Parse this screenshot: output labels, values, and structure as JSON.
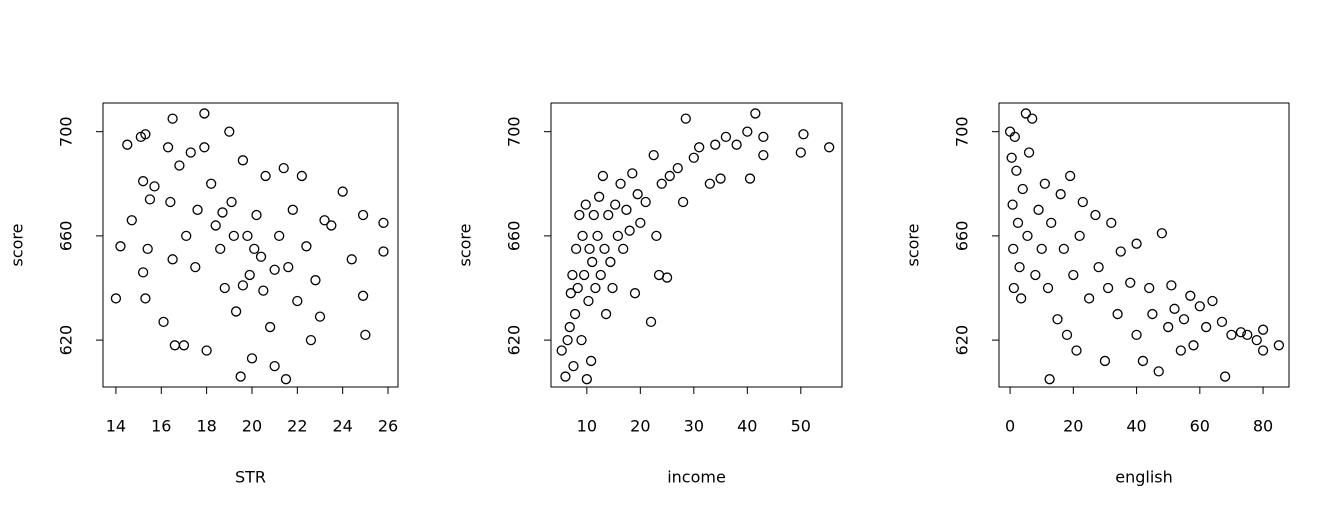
{
  "chart_data": [
    {
      "type": "scatter",
      "xlabel": "STR",
      "ylabel": "score",
      "xlim": [
        13.43,
        26.44
      ],
      "ylim": [
        602,
        711
      ],
      "xticks": [
        14,
        16,
        18,
        20,
        22,
        24,
        26
      ],
      "yticks": [
        620,
        660,
        700
      ],
      "series": [
        {
          "color": "#000000",
          "x": [
            14.0,
            14.2,
            14.5,
            14.7,
            15.1,
            15.3,
            15.2,
            15.4,
            15.5,
            15.2,
            15.3,
            15.7,
            16.1,
            16.3,
            16.4,
            16.5,
            16.6,
            16.5,
            16.8,
            17.0,
            17.1,
            17.3,
            17.5,
            17.6,
            17.9,
            17.9,
            18.0,
            18.2,
            18.4,
            18.6,
            18.8,
            19.0,
            19.1,
            19.3,
            19.5,
            19.6,
            19.8,
            19.9,
            20.0,
            20.2,
            20.4,
            20.5,
            20.6,
            20.8,
            21.0,
            21.2,
            21.4,
            21.5,
            21.6,
            21.8,
            22.0,
            22.2,
            22.4,
            22.6,
            22.8,
            23.0,
            23.2,
            23.5,
            24.0,
            24.4,
            24.9,
            24.9,
            25.0,
            25.8,
            25.8,
            19.2,
            18.7,
            20.1,
            19.6,
            21.0
          ],
          "values": [
            636,
            656,
            695,
            666,
            698,
            699,
            681,
            655,
            674,
            646,
            636,
            679,
            627,
            694,
            673,
            651,
            618,
            705,
            687,
            618,
            660,
            692,
            648,
            670,
            707,
            694,
            616,
            680,
            664,
            655,
            640,
            700,
            673,
            631,
            606,
            689,
            660,
            645,
            613,
            668,
            652,
            639,
            683,
            625,
            610,
            660,
            686,
            605,
            648,
            670,
            635,
            683,
            656,
            620,
            643,
            629,
            666,
            664,
            677,
            651,
            668,
            637,
            622,
            665,
            654,
            660,
            669,
            655,
            641,
            647
          ]
        }
      ]
    },
    {
      "type": "scatter",
      "xlabel": "income",
      "ylabel": "score",
      "xlim": [
        3.3,
        57.7
      ],
      "ylim": [
        602,
        711
      ],
      "xticks": [
        10,
        20,
        30,
        40,
        50
      ],
      "yticks": [
        620,
        660,
        700
      ],
      "series": [
        {
          "color": "#000000",
          "x": [
            5.3,
            6.0,
            6.4,
            6.8,
            7.0,
            7.3,
            7.5,
            7.8,
            8.0,
            8.3,
            8.6,
            9.0,
            9.2,
            9.5,
            9.8,
            10.0,
            10.3,
            10.5,
            10.8,
            11.0,
            11.3,
            11.6,
            12.0,
            12.3,
            12.6,
            13.0,
            13.3,
            13.6,
            14.0,
            14.4,
            14.8,
            15.3,
            15.8,
            16.3,
            16.8,
            17.4,
            18.0,
            18.5,
            19.0,
            19.5,
            20.0,
            21.0,
            22.0,
            22.5,
            23.0,
            23.5,
            24.0,
            25.0,
            25.5,
            27.0,
            28.0,
            28.5,
            30.0,
            31.0,
            33.0,
            34.0,
            35.0,
            36.0,
            38.0,
            40.0,
            40.5,
            41.5,
            43.0,
            43.0,
            50.0,
            50.5,
            55.3
          ],
          "values": [
            616,
            606,
            620,
            625,
            638,
            645,
            610,
            630,
            655,
            640,
            668,
            620,
            660,
            645,
            672,
            605,
            635,
            655,
            612,
            650,
            668,
            640,
            660,
            675,
            645,
            683,
            655,
            630,
            668,
            650,
            640,
            672,
            660,
            680,
            655,
            670,
            662,
            684,
            638,
            676,
            665,
            673,
            627,
            691,
            660,
            645,
            680,
            644,
            683,
            686,
            673,
            705,
            690,
            694,
            680,
            695,
            682,
            698,
            695,
            700,
            682,
            707,
            698,
            691,
            692,
            699,
            694
          ]
        }
      ]
    },
    {
      "type": "scatter",
      "xlabel": "english",
      "ylabel": "score",
      "xlim": [
        -3.5,
        88.2
      ],
      "ylim": [
        602,
        711
      ],
      "xticks": [
        0,
        20,
        40,
        60,
        80
      ],
      "yticks": [
        620,
        660,
        700
      ],
      "series": [
        {
          "color": "#000000",
          "x": [
            0,
            0.5,
            0.8,
            1,
            1.2,
            1.5,
            2,
            2.5,
            3,
            3.5,
            4,
            5,
            5.5,
            6,
            7,
            8,
            9,
            10,
            11,
            12,
            12.5,
            13,
            15,
            16,
            17,
            18,
            19,
            20,
            21,
            22,
            23,
            25,
            27,
            28,
            30,
            31,
            32,
            34,
            35,
            38,
            40,
            40,
            42,
            44,
            45,
            47,
            48,
            50,
            51,
            52,
            54,
            55,
            57,
            58,
            60,
            62,
            64,
            67,
            68,
            70,
            73,
            75,
            78,
            80,
            80,
            85
          ],
          "values": [
            700,
            690,
            672,
            655,
            640,
            698,
            685,
            665,
            648,
            636,
            678,
            707,
            660,
            692,
            705,
            645,
            670,
            655,
            680,
            640,
            605,
            665,
            628,
            676,
            655,
            622,
            683,
            645,
            616,
            660,
            673,
            636,
            668,
            648,
            612,
            640,
            665,
            630,
            654,
            642,
            622,
            657,
            612,
            640,
            630,
            608,
            661,
            625,
            641,
            632,
            616,
            628,
            637,
            618,
            633,
            625,
            635,
            627,
            606,
            622,
            623,
            622,
            620,
            616,
            624,
            618
          ]
        }
      ]
    }
  ]
}
